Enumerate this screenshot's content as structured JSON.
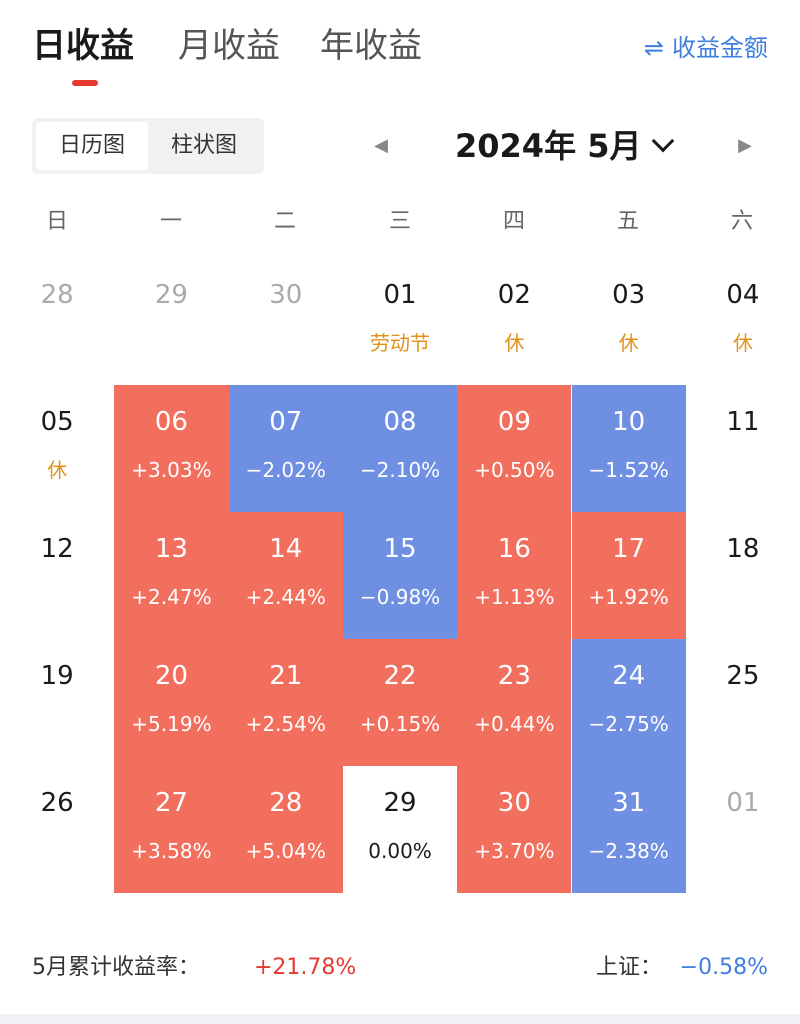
{
  "tabs": [
    {
      "label": "日收益",
      "active": true
    },
    {
      "label": "月收益",
      "active": false
    },
    {
      "label": "年收益",
      "active": false
    }
  ],
  "amount_link": {
    "icon": "swap-arrows-icon",
    "icon_glyph": "⇌",
    "label": "收益金额"
  },
  "view_toggle": [
    {
      "label": "日历图",
      "active": true
    },
    {
      "label": "柱状图",
      "active": false
    }
  ],
  "month_nav": {
    "prev_glyph": "◀",
    "next_glyph": "▶",
    "label": "2024年 5月"
  },
  "weekdays": [
    "日",
    "一",
    "二",
    "三",
    "四",
    "五",
    "六"
  ],
  "colors": {
    "up": "#f26e5d",
    "down": "#6f8fe3",
    "holiday": "#e0921a",
    "accent_red": "#e6392f",
    "accent_blue": "#3f7fe0"
  },
  "calendar": {
    "weeks": [
      [
        {
          "day": "28",
          "status": "other",
          "sub": ""
        },
        {
          "day": "29",
          "status": "other",
          "sub": ""
        },
        {
          "day": "30",
          "status": "other",
          "sub": ""
        },
        {
          "day": "01",
          "status": "plain",
          "sub": "劳动节",
          "holiday": true
        },
        {
          "day": "02",
          "status": "plain",
          "sub": "休",
          "holiday": true
        },
        {
          "day": "03",
          "status": "plain",
          "sub": "休",
          "holiday": true
        },
        {
          "day": "04",
          "status": "plain",
          "sub": "休",
          "holiday": true
        }
      ],
      [
        {
          "day": "05",
          "status": "plain",
          "sub": "休",
          "holiday": true
        },
        {
          "day": "06",
          "status": "up",
          "sub": "+3.03%"
        },
        {
          "day": "07",
          "status": "down",
          "sub": "−2.02%"
        },
        {
          "day": "08",
          "status": "down",
          "sub": "−2.10%"
        },
        {
          "day": "09",
          "status": "up",
          "sub": "+0.50%"
        },
        {
          "day": "10",
          "status": "down",
          "sub": "−1.52%"
        },
        {
          "day": "11",
          "status": "plain",
          "sub": ""
        }
      ],
      [
        {
          "day": "12",
          "status": "plain",
          "sub": ""
        },
        {
          "day": "13",
          "status": "up",
          "sub": "+2.47%"
        },
        {
          "day": "14",
          "status": "up",
          "sub": "+2.44%"
        },
        {
          "day": "15",
          "status": "down",
          "sub": "−0.98%"
        },
        {
          "day": "16",
          "status": "up",
          "sub": "+1.13%"
        },
        {
          "day": "17",
          "status": "up",
          "sub": "+1.92%"
        },
        {
          "day": "18",
          "status": "plain",
          "sub": ""
        }
      ],
      [
        {
          "day": "19",
          "status": "plain",
          "sub": ""
        },
        {
          "day": "20",
          "status": "up",
          "sub": "+5.19%"
        },
        {
          "day": "21",
          "status": "up",
          "sub": "+2.54%"
        },
        {
          "day": "22",
          "status": "up",
          "sub": "+0.15%"
        },
        {
          "day": "23",
          "status": "up",
          "sub": "+0.44%"
        },
        {
          "day": "24",
          "status": "down",
          "sub": "−2.75%"
        },
        {
          "day": "25",
          "status": "plain",
          "sub": ""
        }
      ],
      [
        {
          "day": "26",
          "status": "plain",
          "sub": ""
        },
        {
          "day": "27",
          "status": "up",
          "sub": "+3.58%"
        },
        {
          "day": "28",
          "status": "up",
          "sub": "+5.04%"
        },
        {
          "day": "29",
          "status": "flat",
          "sub": "0.00%"
        },
        {
          "day": "30",
          "status": "up",
          "sub": "+3.70%"
        },
        {
          "day": "31",
          "status": "down",
          "sub": "−2.38%"
        },
        {
          "day": "01",
          "status": "other",
          "sub": ""
        }
      ]
    ]
  },
  "footer": {
    "cumulative_label": "5月累计收益率：",
    "cumulative_value": "+21.78%",
    "index_label": "上证：",
    "index_value": "−0.58%"
  }
}
